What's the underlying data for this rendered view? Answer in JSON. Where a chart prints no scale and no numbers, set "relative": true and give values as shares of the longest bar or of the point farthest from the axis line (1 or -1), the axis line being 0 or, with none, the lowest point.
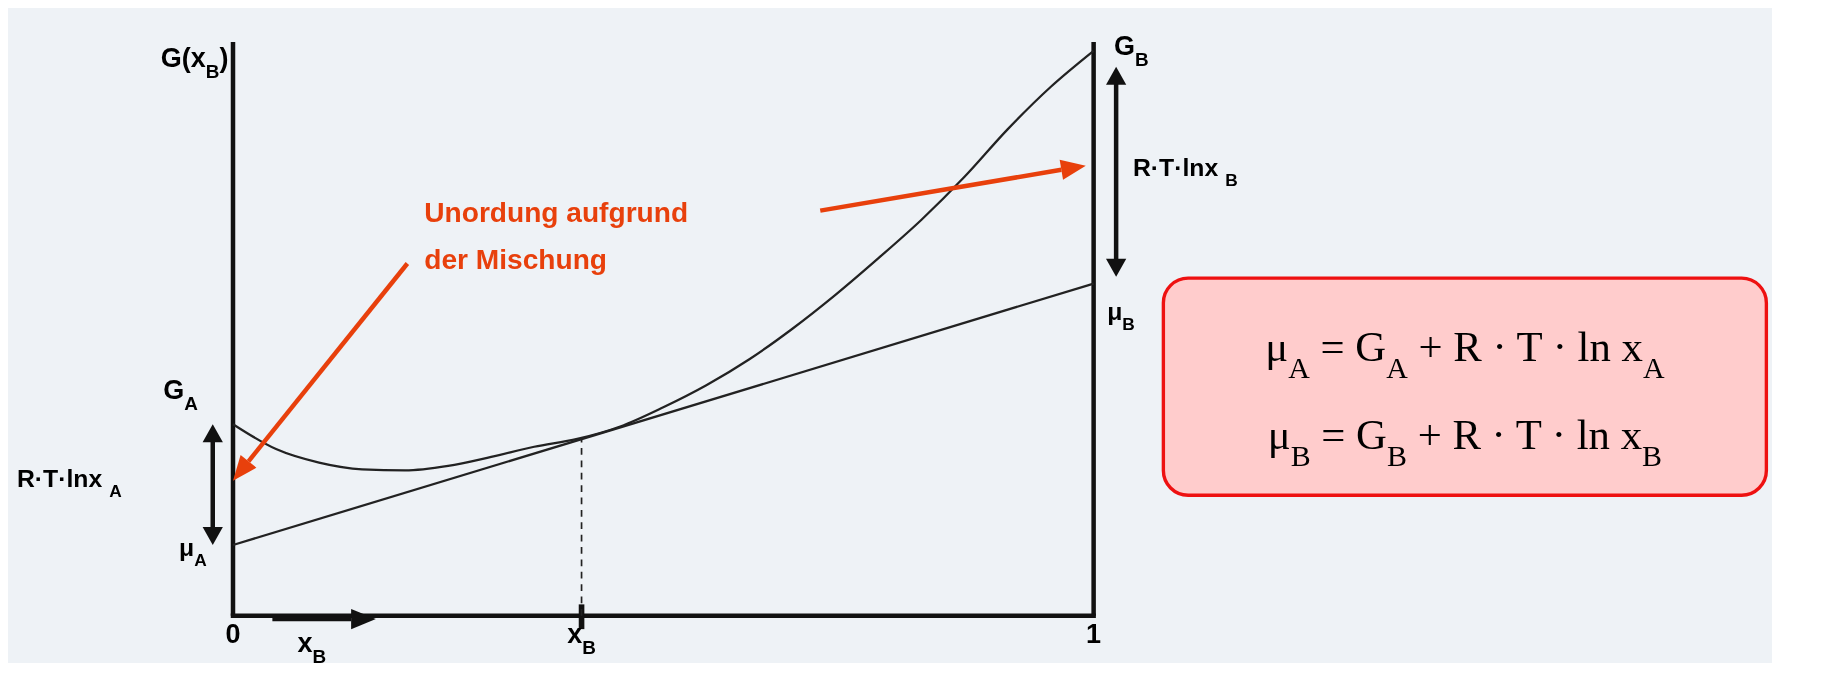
{
  "chart_data": {
    "type": "line",
    "relative": true,
    "ylabel": "G(x$_{B}$)",
    "xlabel": "x$_{B}$",
    "xlim": [
      0,
      1
    ],
    "xticks": [
      0,
      {
        "value": 0.405,
        "label": "x$_{B}$"
      },
      1
    ],
    "series": [
      {
        "color": "#222222",
        "x": [
          0,
          0.05,
          0.1,
          0.15,
          0.2,
          0.25,
          0.3,
          0.35,
          0.4,
          0.45,
          0.5,
          0.55,
          0.6,
          0.65,
          0.7,
          0.75,
          0.8,
          0.85,
          0.9,
          0.95,
          1
        ],
        "values": [
          0.339,
          0.295,
          0.271,
          0.259,
          0.257,
          0.265,
          0.281,
          0.299,
          0.313,
          0.335,
          0.369,
          0.408,
          0.454,
          0.508,
          0.568,
          0.633,
          0.701,
          0.777,
          0.861,
          0.936,
          1.0
        ]
      },
      {
        "color": "#222222",
        "x": [
          0,
          1
        ],
        "values": [
          0.125,
          0.588
        ]
      }
    ],
    "ref_lines": [
      {
        "axis": "x",
        "value": 0.405,
        "line_style": "dashed",
        "color": "#222222"
      }
    ],
    "annotations": [
      "G$_{A}$",
      "μ$_{A}$",
      "R·T·lnx $_{A}$",
      "G$_{B}$",
      "μ$_{B}$",
      "R·T·lnx $_{B}$",
      "Unordung aufgrund",
      "der Mischung",
      "μ$_{A}$ = G$_{A}$ + R · T · ln x$_{A}$",
      "μ$_{B}$ = G$_{B}$ + R · T · ln x$_{B}$"
    ],
    "line_style": "solid",
    "marker": "none"
  }
}
